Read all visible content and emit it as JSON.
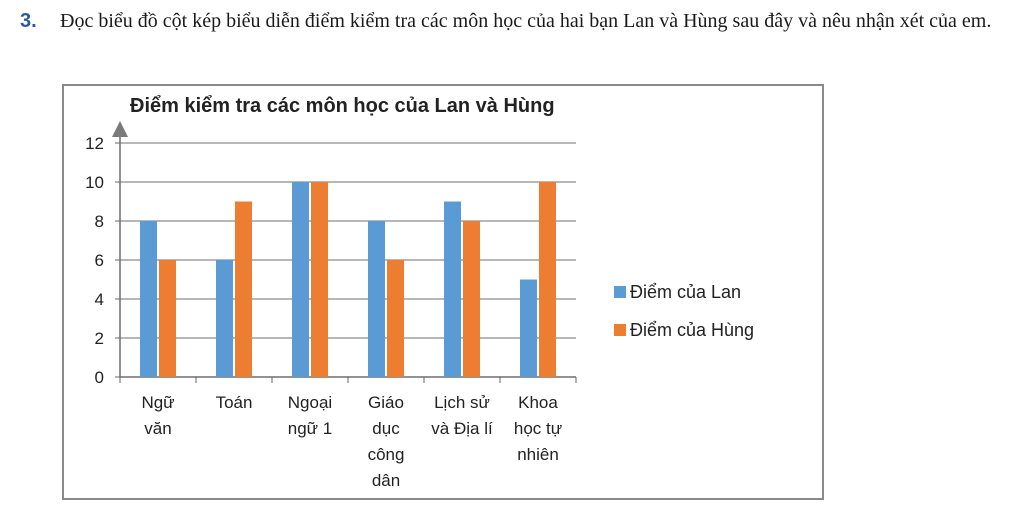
{
  "question": {
    "number": "3.",
    "text": "Đọc biểu đồ cột kép biểu diễn điểm kiểm tra các môn học của hai bạn Lan và Hùng sau đây và nêu nhận xét của em."
  },
  "chart_data": {
    "type": "bar",
    "title": "Điểm kiểm tra các môn học của Lan và Hùng",
    "xlabel": "",
    "ylabel": "",
    "categories": [
      [
        "Ngữ",
        "văn"
      ],
      [
        "Toán"
      ],
      [
        "Ngoại",
        "ngữ 1"
      ],
      [
        "Giáo",
        "dục",
        "công",
        "dân"
      ],
      [
        "Lịch sử",
        "và Địa lí"
      ],
      [
        "Khoa",
        "học tự",
        "nhiên"
      ]
    ],
    "series": [
      {
        "name": "Điểm của Lan",
        "values": [
          8,
          6,
          10,
          8,
          9,
          5
        ],
        "color": "#5b9bd5"
      },
      {
        "name": "Điểm của Hùng",
        "values": [
          6,
          9,
          10,
          6,
          8,
          10
        ],
        "color": "#ed7d31"
      }
    ],
    "ylim": [
      0,
      12
    ],
    "yticks": [
      0,
      2,
      4,
      6,
      8,
      10,
      12
    ],
    "grid": true,
    "legend_position": "right"
  }
}
